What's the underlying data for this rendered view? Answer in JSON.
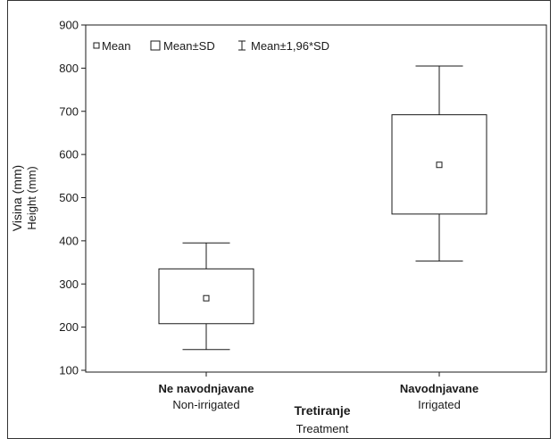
{
  "chart_data": {
    "type": "box",
    "categories": [
      {
        "label": "Ne navodnjavane",
        "sublabel": "Non-irrigated"
      },
      {
        "label": "Navodnjavane",
        "sublabel": "Irrigated"
      }
    ],
    "series": [
      {
        "category": "Ne navodnjavane",
        "mean": 267,
        "sd_low": 208,
        "sd_high": 335,
        "ci_low": 148,
        "ci_high": 395
      },
      {
        "category": "Navodnjavane",
        "mean": 576,
        "sd_low": 462,
        "sd_high": 692,
        "ci_low": 353,
        "ci_high": 805
      }
    ],
    "ylabel": "Visina (mm)",
    "ylabel_sub": "Height (mm)",
    "xlabel": "Tretiranje",
    "xlabel_sub": "Treatment",
    "ylim": [
      100,
      900
    ],
    "yticks": [
      100,
      200,
      300,
      400,
      500,
      600,
      700,
      800,
      900
    ],
    "legend": {
      "placement": "top-left",
      "items": [
        {
          "symbol": "point",
          "label": "Mean"
        },
        {
          "symbol": "box",
          "label": "Mean±SD"
        },
        {
          "symbol": "whisker",
          "label": "Mean±1,96*SD"
        }
      ]
    },
    "grid": false
  }
}
